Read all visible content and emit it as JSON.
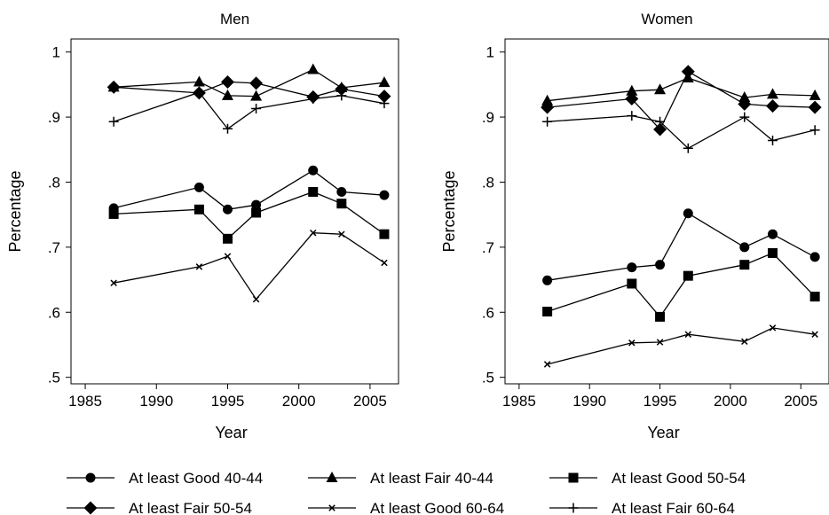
{
  "chart_data": [
    {
      "type": "line",
      "title": "Men",
      "xlabel": "Year",
      "ylabel": "Percentage",
      "xlim": [
        1984,
        2007
      ],
      "ylim": [
        0.49,
        1.02
      ],
      "xticks": [
        1985,
        1990,
        1995,
        2000,
        2005
      ],
      "xtick_labels": [
        "1985",
        "1990",
        "1995",
        "2000",
        "2005"
      ],
      "yticks": [
        0.5,
        0.6,
        0.7,
        0.8,
        0.9,
        1.0
      ],
      "ytick_labels": [
        ".5",
        ".6",
        ".7",
        ".8",
        ".9",
        "1"
      ],
      "grid": false,
      "series": [
        {
          "name": "At least Good 40-44",
          "marker": "circle",
          "x": [
            1987,
            1993,
            1995,
            1997,
            2001,
            2003,
            2006
          ],
          "values": [
            0.76,
            0.792,
            0.758,
            0.765,
            0.818,
            0.785,
            0.78
          ]
        },
        {
          "name": "At least Fair 40-44",
          "marker": "triangle",
          "x": [
            1987,
            1993,
            1995,
            1997,
            2001,
            2003,
            2006
          ],
          "values": [
            0.946,
            0.954,
            0.933,
            0.932,
            0.973,
            0.945,
            0.953
          ]
        },
        {
          "name": "At least Good 50-54",
          "marker": "square",
          "x": [
            1987,
            1993,
            1995,
            1997,
            2001,
            2003,
            2006
          ],
          "values": [
            0.751,
            0.758,
            0.713,
            0.753,
            0.785,
            0.767,
            0.72
          ]
        },
        {
          "name": "At least Fair 50-54",
          "marker": "diamond",
          "x": [
            1987,
            1993,
            1995,
            1997,
            2001,
            2003,
            2006
          ],
          "values": [
            0.946,
            0.937,
            0.954,
            0.952,
            0.931,
            0.943,
            0.932
          ]
        },
        {
          "name": "At least Good 60-64",
          "marker": "x",
          "x": [
            1987,
            1993,
            1995,
            1997,
            2001,
            2003,
            2006
          ],
          "values": [
            0.645,
            0.67,
            0.686,
            0.62,
            0.722,
            0.72,
            0.676
          ]
        },
        {
          "name": "At least Fair 60-64",
          "marker": "plus",
          "x": [
            1987,
            1993,
            1995,
            1997,
            2001,
            2003,
            2006
          ],
          "values": [
            0.893,
            0.938,
            0.882,
            0.913,
            0.928,
            0.933,
            0.921
          ]
        }
      ]
    },
    {
      "type": "line",
      "title": "Women",
      "xlabel": "Year",
      "ylabel": "Percentage",
      "xlim": [
        1984,
        2007
      ],
      "ylim": [
        0.49,
        1.02
      ],
      "xticks": [
        1985,
        1990,
        1995,
        2000,
        2005
      ],
      "xtick_labels": [
        "1985",
        "1990",
        "1995",
        "2000",
        "2005"
      ],
      "yticks": [
        0.5,
        0.6,
        0.7,
        0.8,
        0.9,
        1.0
      ],
      "ytick_labels": [
        ".5",
        ".6",
        ".7",
        ".8",
        ".9",
        "1"
      ],
      "grid": false,
      "series": [
        {
          "name": "At least Good 40-44",
          "marker": "circle",
          "x": [
            1987,
            1993,
            1995,
            1997,
            2001,
            2003,
            2006
          ],
          "values": [
            0.649,
            0.669,
            0.673,
            0.752,
            0.7,
            0.72,
            0.685
          ]
        },
        {
          "name": "At least Fair 40-44",
          "marker": "triangle",
          "x": [
            1987,
            1993,
            1995,
            1997,
            2001,
            2003,
            2006
          ],
          "values": [
            0.925,
            0.94,
            0.942,
            0.96,
            0.93,
            0.935,
            0.933
          ]
        },
        {
          "name": "At least Good 50-54",
          "marker": "square",
          "x": [
            1987,
            1993,
            1995,
            1997,
            2001,
            2003,
            2006
          ],
          "values": [
            0.601,
            0.644,
            0.593,
            0.656,
            0.673,
            0.691,
            0.624
          ]
        },
        {
          "name": "At least Fair 50-54",
          "marker": "diamond",
          "x": [
            1987,
            1993,
            1995,
            1997,
            2001,
            2003,
            2006
          ],
          "values": [
            0.915,
            0.928,
            0.881,
            0.97,
            0.92,
            0.917,
            0.915
          ]
        },
        {
          "name": "At least Good 60-64",
          "marker": "x",
          "x": [
            1987,
            1993,
            1995,
            1997,
            2001,
            2003,
            2006
          ],
          "values": [
            0.52,
            0.553,
            0.554,
            0.566,
            0.555,
            0.576,
            0.566
          ]
        },
        {
          "name": "At least Fair 60-64",
          "marker": "plus",
          "x": [
            1987,
            1993,
            1995,
            1997,
            2001,
            2003,
            2006
          ],
          "values": [
            0.893,
            0.902,
            0.893,
            0.852,
            0.9,
            0.864,
            0.88
          ]
        }
      ]
    }
  ],
  "legend": {
    "placement": "bottom",
    "entries": [
      {
        "label": "At least Good 40-44",
        "marker": "circle"
      },
      {
        "label": "At least Fair 40-44",
        "marker": "triangle"
      },
      {
        "label": "At least Good 50-54",
        "marker": "square"
      },
      {
        "label": "At least Fair 50-54",
        "marker": "diamond"
      },
      {
        "label": "At least Good 60-64",
        "marker": "x"
      },
      {
        "label": "At least Fair 60-64",
        "marker": "plus"
      }
    ]
  },
  "colors": {
    "ink": "#000000",
    "background": "#ffffff"
  }
}
